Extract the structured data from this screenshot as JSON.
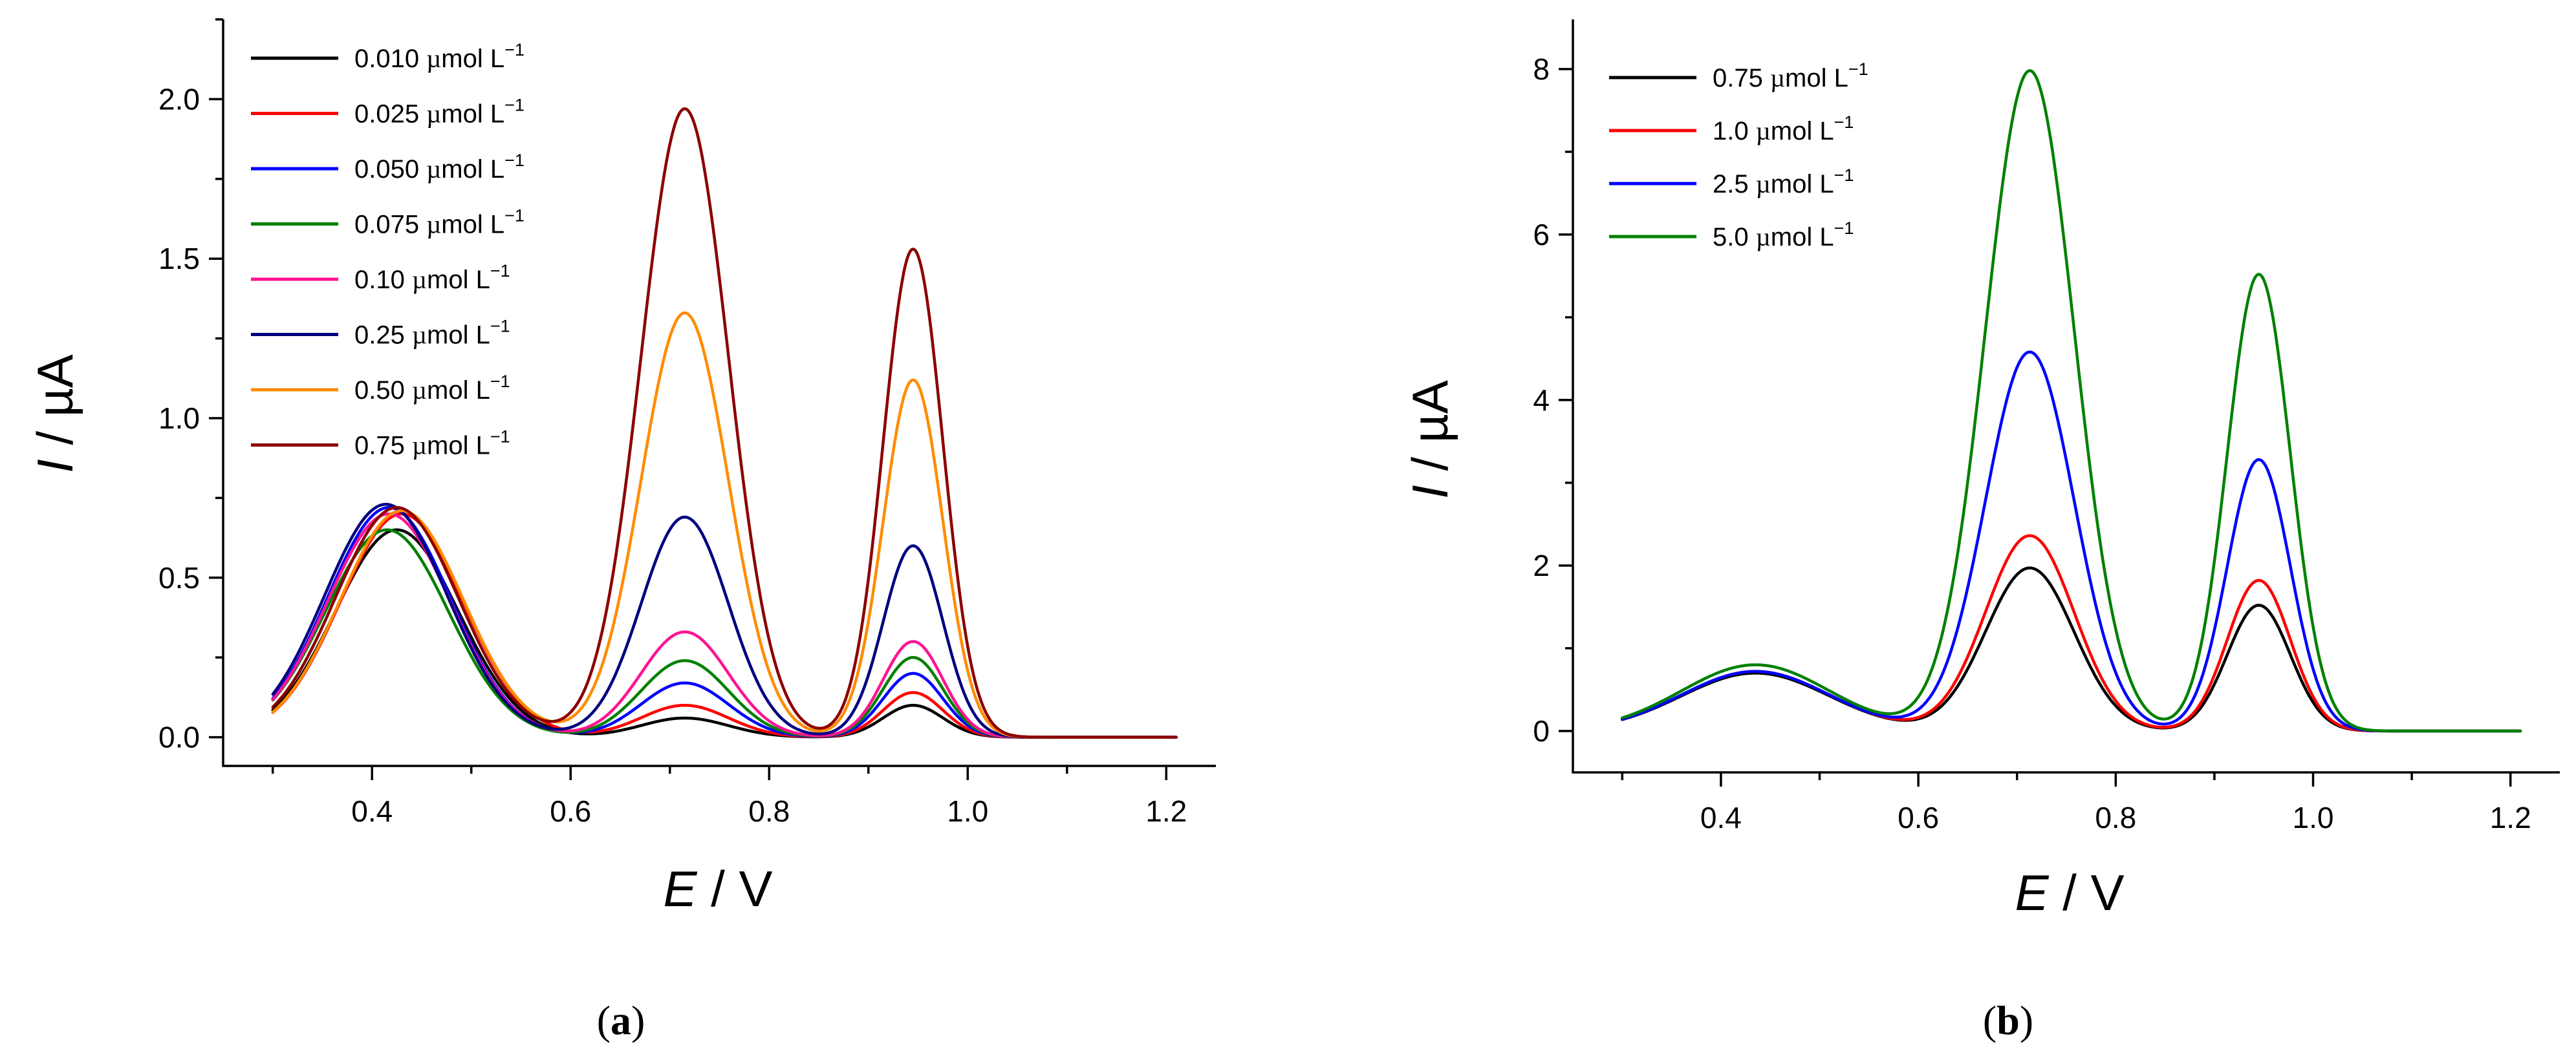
{
  "chart_data": [
    {
      "type": "line",
      "panel": "a",
      "caption": {
        "open": "(",
        "letter": "a",
        "close": ")"
      },
      "xlabel": {
        "symbol": "E",
        "unit": " / V"
      },
      "ylabel": {
        "symbol": "I",
        "unit": " / µA"
      },
      "xlim": [
        0.25,
        1.25
      ],
      "ylim": [
        -0.09,
        2.25
      ],
      "xticks": [
        0.4,
        0.6,
        0.8,
        1.0,
        1.2
      ],
      "xtick_labels": [
        "0.4",
        "0.6",
        "0.8",
        "1.0",
        "1.2"
      ],
      "yticks": [
        0.0,
        0.5,
        1.0,
        1.5,
        2.0
      ],
      "ytick_labels": [
        "0.0",
        "0.5",
        "1.0",
        "1.5",
        "2.0"
      ],
      "x_range": [
        0.3,
        1.21
      ],
      "legend_position": "top-left",
      "unit_text": {
        "mu": "µ",
        "unit": "mol L",
        "exp": "−1"
      },
      "peak_centers": [
        0.42,
        0.715,
        0.945
      ],
      "peak_widths": [
        0.062,
        0.044,
        0.03
      ],
      "series": [
        {
          "name": "0.010 µmol L−1",
          "label": "0.010",
          "color": "#000000",
          "peaks": [
            0.65,
            0.06,
            0.1
          ],
          "shift": [
            0.005,
            0,
            0
          ]
        },
        {
          "name": "0.025 µmol L−1",
          "label": "0.025",
          "color": "#ff0000",
          "peaks": [
            0.7,
            0.1,
            0.14
          ],
          "shift": [
            0.01,
            0,
            0
          ]
        },
        {
          "name": "0.050 µmol L−1",
          "label": "0.050",
          "color": "#0000ff",
          "peaks": [
            0.72,
            0.17,
            0.2
          ],
          "shift": [
            -0.003,
            0,
            0
          ]
        },
        {
          "name": "0.075 µmol L−1",
          "label": "0.075",
          "color": "#008000",
          "peaks": [
            0.65,
            0.24,
            0.25
          ],
          "shift": [
            -0.005,
            0,
            0
          ]
        },
        {
          "name": "0.10 µmol L−1",
          "label": "0.10",
          "color": "#ff1493",
          "peaks": [
            0.7,
            0.33,
            0.3
          ],
          "shift": [
            -0.003,
            0,
            0
          ]
        },
        {
          "name": "0.25 µmol L−1",
          "label": "0.25",
          "color": "#000080",
          "peaks": [
            0.73,
            0.69,
            0.6
          ],
          "shift": [
            -0.006,
            0,
            0
          ]
        },
        {
          "name": "0.50 µmol L−1",
          "label": "0.50",
          "color": "#ff8c00",
          "peaks": [
            0.71,
            1.33,
            1.12
          ],
          "shift": [
            0.01,
            0,
            0
          ]
        },
        {
          "name": "0.75 µmol L−1",
          "label": "0.75",
          "color": "#8b0000",
          "peaks": [
            0.72,
            1.97,
            1.53
          ],
          "shift": [
            0.005,
            0,
            0
          ]
        }
      ]
    },
    {
      "type": "line",
      "panel": "b",
      "caption": {
        "open": "(",
        "letter": "b",
        "close": ")"
      },
      "xlabel": {
        "symbol": "E",
        "unit": " / V"
      },
      "ylabel": {
        "symbol": "I",
        "unit": " / µA"
      },
      "xlim": [
        0.25,
        1.25
      ],
      "ylim": [
        -0.5,
        8.6
      ],
      "xticks": [
        0.4,
        0.6,
        0.8,
        1.0,
        1.2
      ],
      "xtick_labels": [
        "0.4",
        "0.6",
        "0.8",
        "1.0",
        "1.2"
      ],
      "yticks": [
        0,
        2,
        4,
        6,
        8
      ],
      "ytick_labels": [
        "0",
        "2",
        "4",
        "6",
        "8"
      ],
      "x_range": [
        0.3,
        1.21
      ],
      "legend_position": "top-left",
      "unit_text": {
        "mu": "µ",
        "unit": "mol L",
        "exp": "−1"
      },
      "peak_centers": [
        0.435,
        0.713,
        0.945
      ],
      "peak_widths": [
        0.075,
        0.045,
        0.032
      ],
      "series": [
        {
          "name": "0.75 µmol L−1",
          "label": "0.75",
          "color": "#000000",
          "peaks": [
            0.7,
            1.97,
            1.52
          ],
          "shift": [
            0,
            0,
            0
          ]
        },
        {
          "name": "1.0 µmol L−1",
          "label": "1.0",
          "color": "#ff0000",
          "peaks": [
            0.72,
            2.36,
            1.82
          ],
          "shift": [
            0,
            0,
            0
          ]
        },
        {
          "name": "2.5 µmol L−1",
          "label": "2.5",
          "color": "#0000ff",
          "peaks": [
            0.72,
            4.58,
            3.28
          ],
          "shift": [
            0,
            0,
            0
          ]
        },
        {
          "name": "5.0 µmol L−1",
          "label": "5.0",
          "color": "#008000",
          "peaks": [
            0.8,
            7.98,
            5.52
          ],
          "shift": [
            0,
            0,
            0
          ]
        }
      ]
    }
  ]
}
